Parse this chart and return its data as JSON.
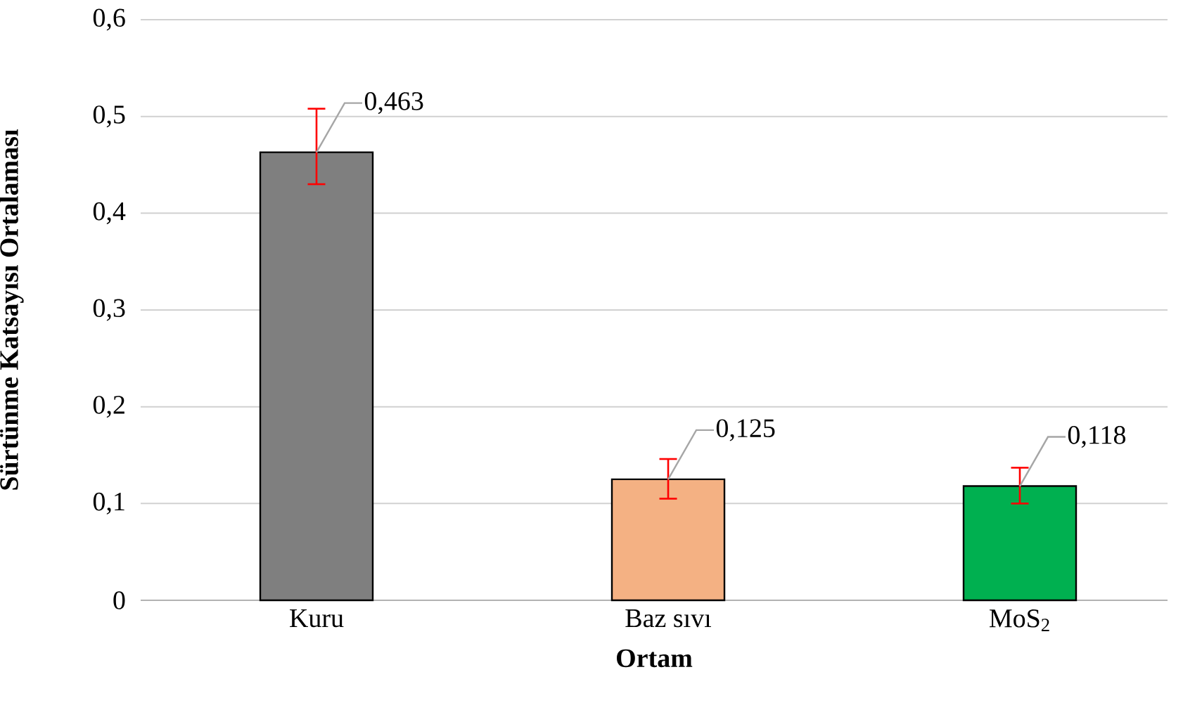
{
  "chart_data": {
    "type": "bar",
    "xlabel": "Ortam",
    "ylabel": "Sürtünme Katsayısı Ortalaması",
    "categories": [
      "Kuru",
      "Baz sıvı",
      "MoS$_{2}$"
    ],
    "values": [
      0.463,
      0.125,
      0.118
    ],
    "colors": [
      "#7f7f7f",
      "#f4b183",
      "#00b050"
    ],
    "errors": [
      [
        0.43,
        0.508
      ],
      [
        0.105,
        0.146
      ],
      [
        0.1,
        0.137
      ]
    ],
    "value_labels": [
      "0,463",
      "0,125",
      "0,118"
    ],
    "ylim": [
      0,
      0.6
    ],
    "yticks": [
      {
        "value": 0,
        "label": "0"
      },
      {
        "value": 0.1,
        "label": "0,1"
      },
      {
        "value": 0.2,
        "label": "0,2"
      },
      {
        "value": 0.3,
        "label": "0,3"
      },
      {
        "value": 0.4,
        "label": "0,4"
      },
      {
        "value": 0.5,
        "label": "0,5"
      },
      {
        "value": 0.6,
        "label": "0,6"
      }
    ],
    "grid": "y"
  }
}
